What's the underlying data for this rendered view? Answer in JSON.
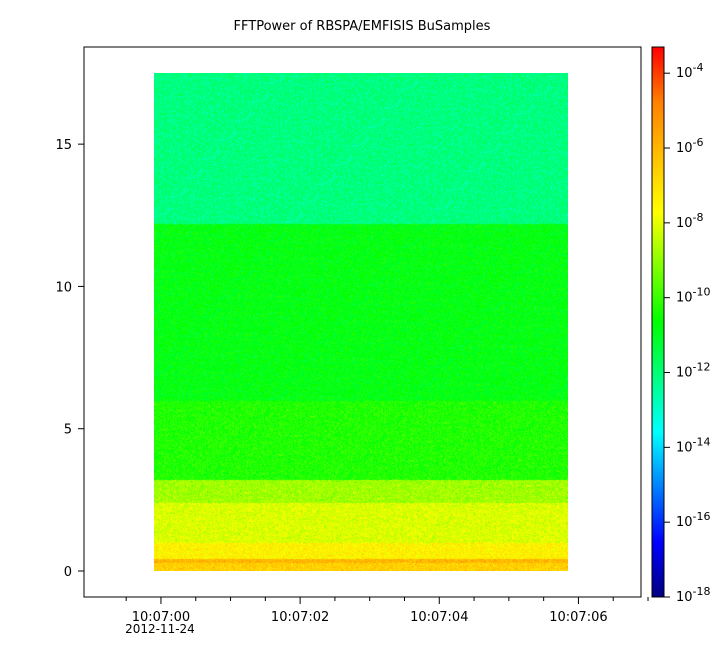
{
  "chart_data": {
    "type": "heatmap",
    "title": "FFTPower of RBSPA/EMFISIS  BuSamples",
    "xlabel": "",
    "ylabel": "",
    "x_axis": {
      "type": "time",
      "range": [
        "2012-11-24 10:06:59.2",
        "2012-11-24 10:07:07.2"
      ],
      "major_ticks": [
        {
          "value": "2012-11-24 10:07:00",
          "label": "10:07:00",
          "sublabel": "2012-11-24"
        },
        {
          "value": "2012-11-24 10:07:02",
          "label": "10:07:02",
          "sublabel": ""
        },
        {
          "value": "2012-11-24 10:07:04",
          "label": "10:07:04",
          "sublabel": ""
        },
        {
          "value": "2012-11-24 10:07:06",
          "label": "10:07:06",
          "sublabel": ""
        }
      ],
      "minor_ticks_seconds_after_10:07:00": [
        -0.5,
        0.5,
        1.0,
        1.5,
        2.5,
        3.0,
        3.5,
        4.5,
        5.0,
        5.5,
        6.5,
        7.0
      ]
    },
    "y_axis": {
      "range": [
        -0.8,
        18.7
      ],
      "ticks": [
        0,
        5,
        10,
        15
      ],
      "tick_labels": [
        "0",
        "5",
        "10",
        "15"
      ],
      "scale": "linear"
    },
    "data_extent": {
      "time_start": "2012-11-24 10:06:59.9",
      "time_end": "2012-11-24 10:07:05.85",
      "y_min": 0,
      "y_max": 17.5
    },
    "colorbar": {
      "scale": "log",
      "range_exponents": [
        -18,
        -3.3
      ],
      "tick_exponents": [
        -18,
        -16,
        -14,
        -12,
        -10,
        -8,
        -6,
        -4
      ],
      "tick_base": "10",
      "colormap": "rainbow (dark blue to red)",
      "colors": [
        "#000080",
        "#0000ff",
        "#0080ff",
        "#00ffff",
        "#00ff80",
        "#00ff00",
        "#80ff00",
        "#ffff00",
        "#ffc000",
        "#ff8000",
        "#ff0000"
      ]
    },
    "power_profile_by_frequency": [
      {
        "y_from": 0.0,
        "y_to": 0.3,
        "log10_power": -6.6
      },
      {
        "y_from": 0.3,
        "y_to": 0.45,
        "log10_power": -6.0
      },
      {
        "y_from": 0.45,
        "y_to": 1.0,
        "log10_power": -7.4
      },
      {
        "y_from": 1.0,
        "y_to": 2.4,
        "log10_power": -8.1
      },
      {
        "y_from": 2.4,
        "y_to": 3.2,
        "log10_power": -8.8
      },
      {
        "y_from": 3.2,
        "y_to": 6.0,
        "log10_power": -10.3
      },
      {
        "y_from": 6.0,
        "y_to": 12.2,
        "log10_power": -10.8
      },
      {
        "y_from": 12.2,
        "y_to": 17.5,
        "log10_power": -12.1
      }
    ],
    "grid": false,
    "legend": "colorbar-right"
  }
}
